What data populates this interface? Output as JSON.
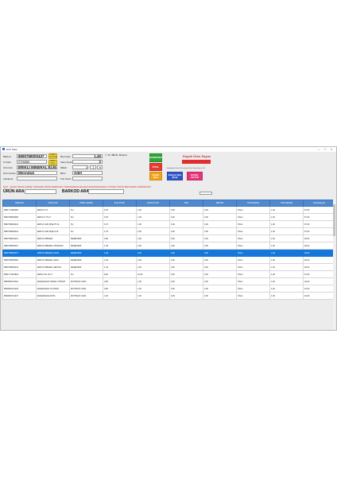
{
  "window": {
    "title": "Hızlı Satış"
  },
  "form": {
    "barkod": {
      "label": "Barkod",
      "value": "8690768000437"
    },
    "skodu": {
      "label": "S.Kodu",
      "value": "ST00855"
    },
    "urun_adi": {
      "label": "Ürün Adı",
      "value": "ERİKLİ MİNERAL ELMA"
    },
    "urun_grubu": {
      "label": "Ürün Grubu",
      "value": "Meşrubat"
    },
    "aciklama": {
      "label": "Açıklama",
      "value": ""
    },
    "birim_fiyati": {
      "label": "Brş Fiyatı",
      "value": "1,49"
    },
    "satis_fiyati": {
      "label": "Satış Fiyatı",
      "value": "2"
    },
    "miktar": {
      "label": "Miktar",
      "value": "1",
      "btn": "1"
    },
    "birim": {
      "label": "Birim",
      "value": "Adet"
    },
    "kdv": {
      "label": "Kdv Oranı",
      "value": ""
    },
    "yellow_buttons": [
      "Fiyatı Güncelle",
      "Birim Kayıt"
    ]
  },
  "options": {
    "check1": "Tk. Bb.",
    "check2": "Bt. Barkod"
  },
  "buttons": {
    "barkodet": "BARKODET",
    "iptal": "İPTAL",
    "etiket": "Etiket Bas",
    "barkodsuz": "Barkod Bas (İlek)",
    "excel": "EXCEL AKTAR"
  },
  "summary": {
    "title": "Kayıtlı Ürün Sayısı",
    "note": "Stoklardan Güncel Satış Fiyatı Ürün Satışı Satırını Sil"
  },
  "warning": "NOT : DAHA ÖNCE GİRİŞİ YAPILMIŞ ÜRÜN BARKODU TEKRARDAN EKLEDİ ZORUNDASINIZ LÜTFEN ÜRÜN MİKTARINI GİRİNİZ KEY",
  "search": {
    "urun_ara": "ÜRÜN ARA :",
    "barkod_ara": "BARKOD ARA :"
  },
  "table": {
    "headers": [
      "BARKOD",
      "ÜRÜN ADI",
      "ÜRÜN GRUBU",
      "ALIŞ FİYATI",
      "SATIŞ FİYATI",
      "KDV",
      "MİKTAR",
      "TOPLAM(HA)",
      "TOPLAM(SA)",
      "Oran(Satış)%"
    ],
    "rows": [
      [
        "8691771500050",
        "ERİKLİ 5 LT",
        "SU",
        "0,78",
        "1,00",
        "0,00",
        "0,00",
        "Özlen",
        "1,00",
        "67,00"
      ],
      [
        "8690768000053",
        "ERİKLİ 0,75 LT",
        "SU",
        "0,78",
        "1,00",
        "0,00",
        "0,00",
        "Özlen",
        "1,00",
        "67,00"
      ],
      [
        "8690768000021",
        "ERİKLİ CAM ŞİŞE 75 CL",
        "SU",
        "0,72",
        "1,00",
        "0,00",
        "0,00",
        "Özlen",
        "1,00",
        "67,00"
      ],
      [
        "8690768000014",
        "ERİKLİ CAM ŞİŞE 1LİK",
        "SU",
        "1,78",
        "2,00",
        "0,00",
        "0,00",
        "Özlen",
        "1,00",
        "67,00"
      ],
      [
        "8690768001211",
        "ERİKLİ MİNERAL",
        "MEŞRUBAT",
        "0,80",
        "2,00",
        "0,00",
        "0,00",
        "Özlen",
        "1,00",
        "62,00"
      ],
      [
        "8690768000017",
        "ERİKLİ MİNERAL AHUDUDU",
        "MEŞRUBAT",
        "1,49",
        "2,00",
        "0,00",
        "0,00",
        "Özlen",
        "1,00",
        "62,00"
      ],
      [
        "8690768000437",
        "ERİKLİ MİNERAL ELMA",
        "MEŞRUBAT",
        "1,49",
        "2,00",
        "0,00",
        "0,00",
        "Özlen",
        "1,00",
        "62,00"
      ],
      [
        "8690768000450",
        "ERİKLİ MİNERAL ŞAKA",
        "MEŞRUBAT",
        "1,49",
        "2,00",
        "0,00",
        "0,00",
        "Özlen",
        "1,00",
        "62,00"
      ],
      [
        "8690768000444",
        "ERİKLİ MİNERAL ŞEFTALİ",
        "MEŞRUBAT",
        "1,49",
        "2,00",
        "0,00",
        "0,00",
        "Özlen",
        "1,00",
        "62,00"
      ],
      [
        "8691771001804",
        "ERİKLİ SU 19 LT",
        "SU",
        "8,00",
        "10,00",
        "0,00",
        "0,00",
        "Özlen",
        "1,00",
        "67,00"
      ],
      [
        "8690960710001",
        "EFEŞANADA TAWAS YOĞURT",
        "MUHTELİF GIDA",
        "0,80",
        "1,00",
        "0,00",
        "0,00",
        "Özlen",
        "1,00",
        "42,00"
      ],
      [
        "8690960710034",
        "EFEŞANADA % AYRAN",
        "MUHTELİF GIDA",
        "0,80",
        "1,00",
        "0,00",
        "0,00",
        "Özlen",
        "1,00",
        "42,00"
      ],
      [
        "8690960711027",
        "EFEŞANADA AKHA",
        "MUHTELİF GIDA",
        "1,00",
        "1,00",
        "0,00",
        "0,00",
        "Özlen",
        "1,00",
        "42,00"
      ]
    ],
    "selected_index": 6
  },
  "colors": {
    "header": "#4f89cf",
    "selected": "#1577d9",
    "barkodet": "#2fa63a",
    "iptal": "#e53b30",
    "etiket": "#f2a51a",
    "barkodsuz": "#2f55c8",
    "excel": "#e5347a"
  }
}
